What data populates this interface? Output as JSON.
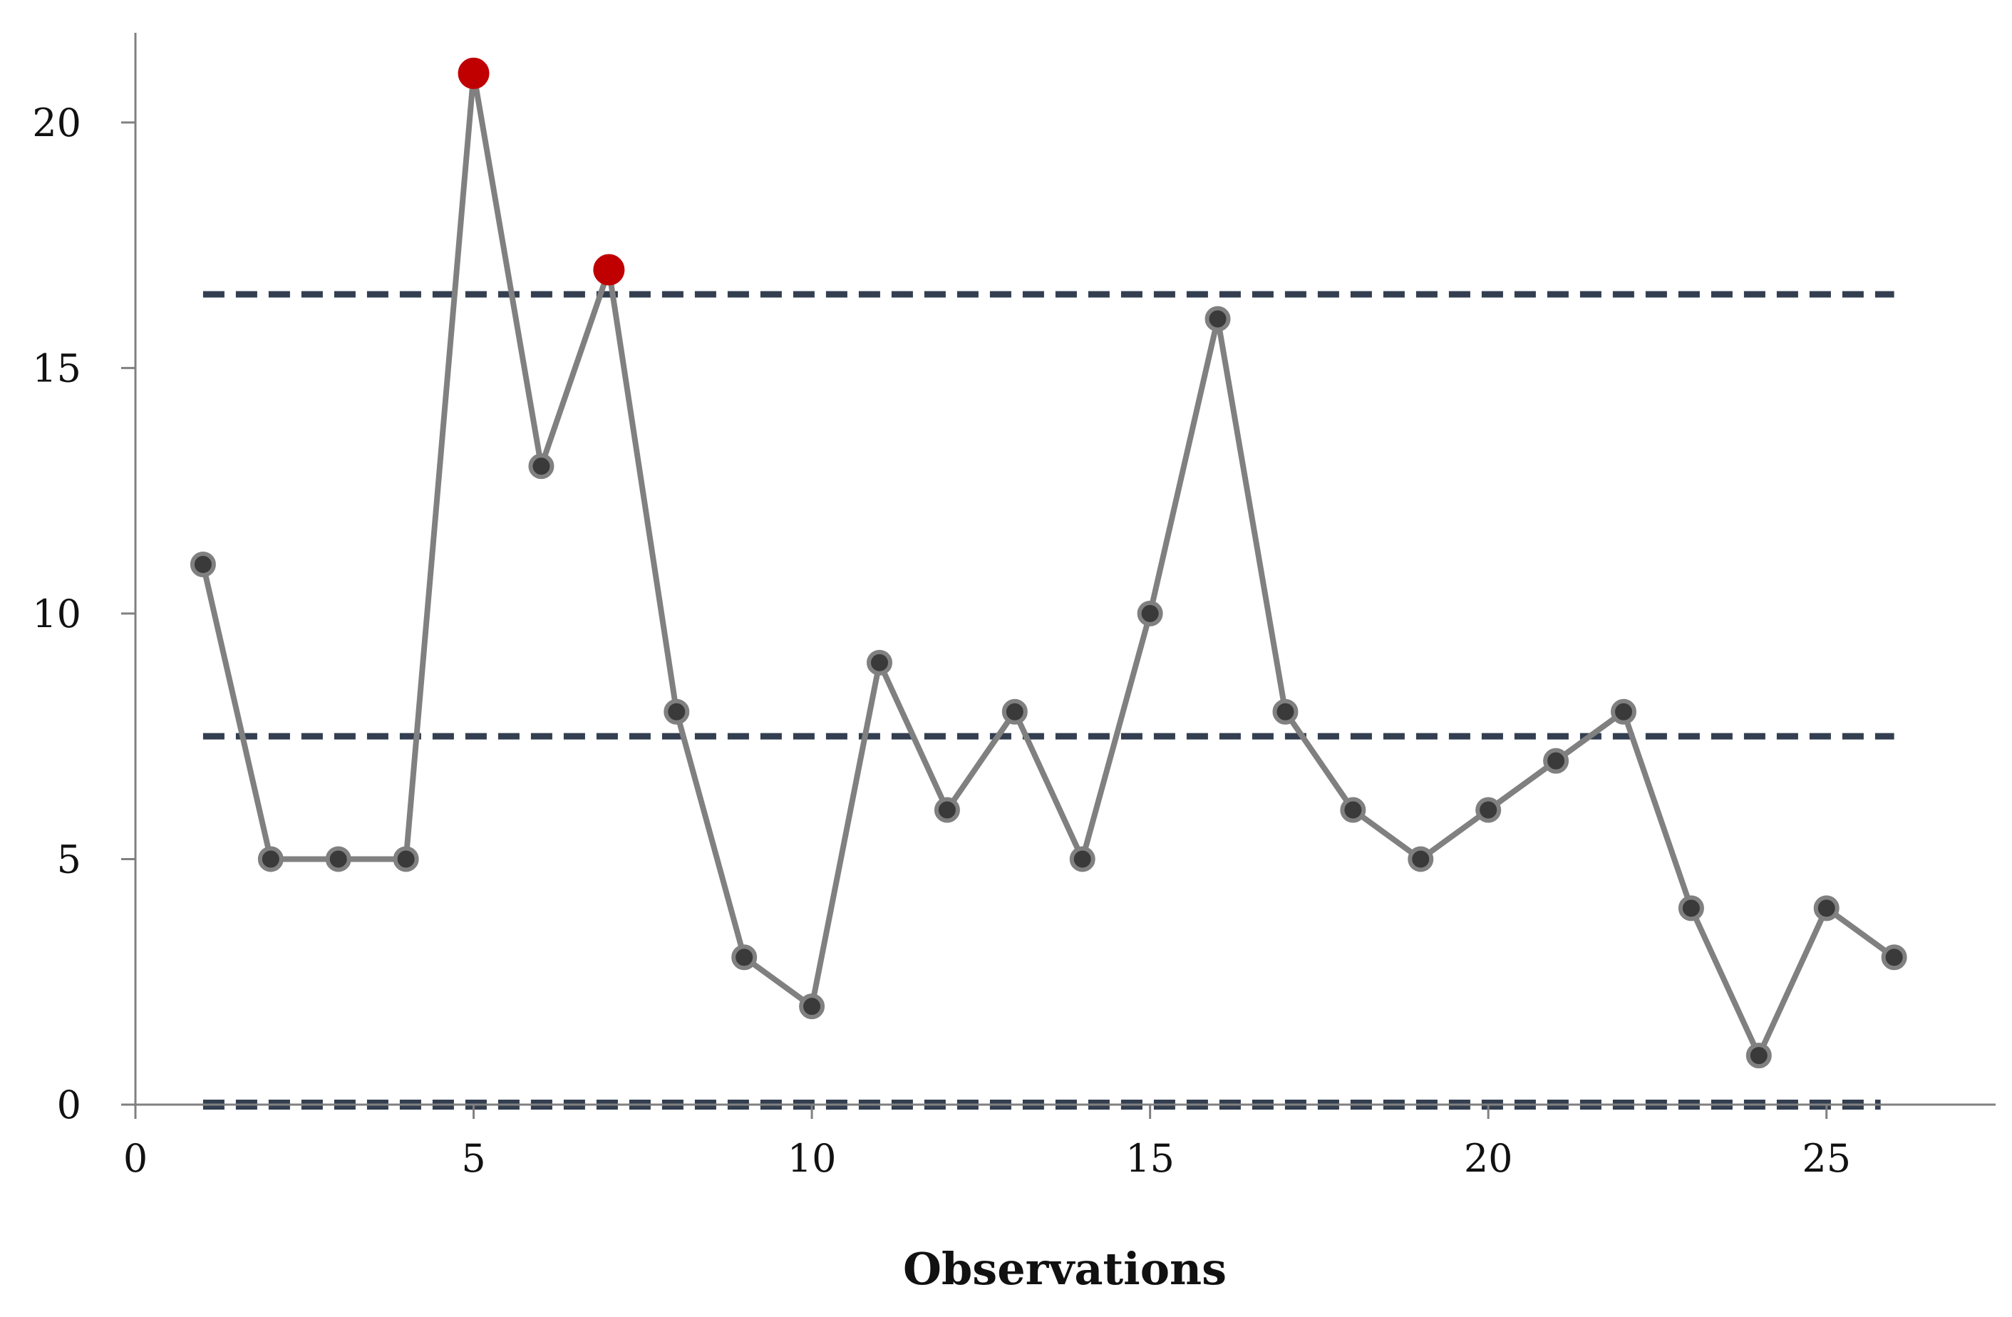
{
  "chart_data": {
    "type": "line",
    "title": "",
    "xlabel": "Observations",
    "ylabel": "",
    "xlim": [
      0,
      27.5
    ],
    "ylim": [
      0,
      22
    ],
    "x_ticks": [
      "0",
      "5",
      "10",
      "15",
      "20",
      "25"
    ],
    "y_ticks": [
      "0",
      "5",
      "10",
      "15",
      "20"
    ],
    "grid": false,
    "legend": "none",
    "series": [
      {
        "x": [
          1,
          2,
          3,
          4,
          5,
          6,
          7,
          8,
          9,
          10,
          11,
          12,
          13,
          14,
          15,
          16,
          17,
          18,
          19,
          20,
          21,
          22,
          23,
          24,
          25,
          26
        ],
        "values": [
          11,
          5,
          5,
          5,
          21,
          13,
          17,
          8,
          3,
          2,
          9,
          6,
          8,
          5,
          10,
          16,
          8,
          6,
          5,
          6,
          7,
          8,
          4,
          1,
          4,
          3
        ]
      }
    ],
    "out_of_control_points": [
      {
        "x": 5,
        "y": 21
      },
      {
        "x": 7,
        "y": 17
      }
    ],
    "control_limits": [
      {
        "kind": "upper",
        "value": 16.5,
        "x_start": 1,
        "x_end": 26
      },
      {
        "kind": "center",
        "value": 7.5,
        "x_start": 1,
        "x_end": 26
      },
      {
        "kind": "lower",
        "value": 0,
        "x_start": 1,
        "x_end": 25.8
      }
    ],
    "colors": {
      "line": "#808080",
      "marker_fill": "#3a3a3a",
      "marker_edge": "#808080",
      "highlight": "#c00000",
      "limit_line": "#333f50",
      "axis": "#808080"
    }
  }
}
